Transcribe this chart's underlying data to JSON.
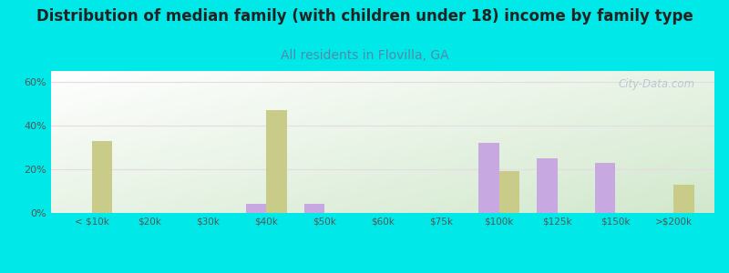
{
  "title": "Distribution of median family (with children under 18) income by family type",
  "subtitle": "All residents in Flovilla, GA",
  "categories": [
    "< $10k",
    "$20k",
    "$30k",
    "$40k",
    "$50k",
    "$60k",
    "$75k",
    "$100k",
    "$125k",
    "$150k",
    ">$200k"
  ],
  "married_values": [
    0,
    0,
    0,
    4,
    4,
    0,
    0,
    32,
    25,
    23,
    0
  ],
  "female_values": [
    33,
    0,
    0,
    47,
    0,
    0,
    0,
    19,
    0,
    0,
    13
  ],
  "married_color": "#c8a8e0",
  "female_color": "#c8cc88",
  "bg_color": "#00e8e8",
  "title_fontsize": 12,
  "subtitle_fontsize": 10,
  "subtitle_color": "#5588aa",
  "ylim": [
    0,
    65
  ],
  "yticks": [
    0,
    20,
    40,
    60
  ],
  "ytick_labels": [
    "0%",
    "20%",
    "40%",
    "60%"
  ],
  "bar_width": 0.35,
  "watermark": "City-Data.com"
}
